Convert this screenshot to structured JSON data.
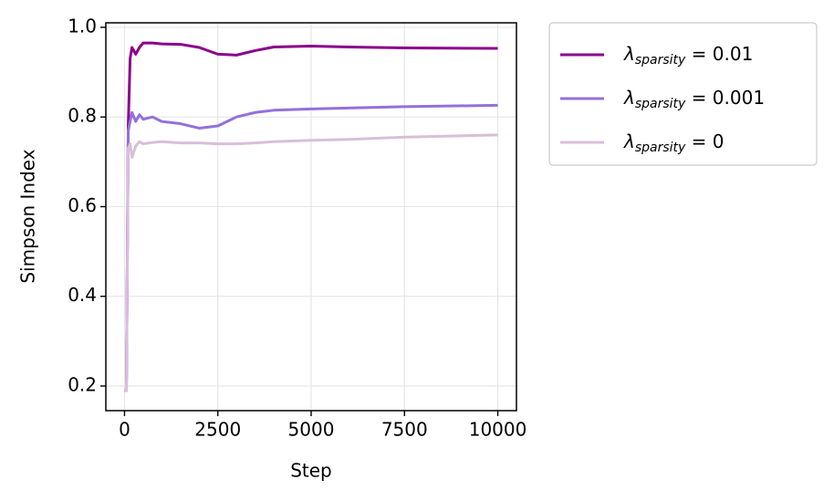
{
  "chart_data": {
    "type": "line",
    "xlabel": "Step",
    "ylabel": "Simpson Index",
    "x": [
      0,
      50,
      100,
      150,
      200,
      300,
      400,
      500,
      750,
      1000,
      1500,
      2000,
      2500,
      3000,
      3500,
      4000,
      5000,
      6000,
      7500,
      10000
    ],
    "series": [
      {
        "name": "λsparsity = 0.01",
        "color": "#8b008b",
        "values": [
          0.19,
          0.19,
          0.78,
          0.93,
          0.955,
          0.94,
          0.955,
          0.965,
          0.965,
          0.963,
          0.962,
          0.955,
          0.94,
          0.938,
          0.948,
          0.956,
          0.958,
          0.956,
          0.954,
          0.953
        ]
      },
      {
        "name": "λsparsity = 0.001",
        "color": "#9370db",
        "values": [
          0.19,
          0.19,
          0.77,
          0.79,
          0.81,
          0.79,
          0.805,
          0.795,
          0.8,
          0.79,
          0.785,
          0.775,
          0.78,
          0.8,
          0.81,
          0.815,
          0.818,
          0.82,
          0.823,
          0.826
        ]
      },
      {
        "name": "λsparsity = 0",
        "color": "#d8bfd8",
        "values": [
          0.19,
          0.19,
          0.73,
          0.74,
          0.71,
          0.735,
          0.745,
          0.74,
          0.743,
          0.745,
          0.742,
          0.742,
          0.74,
          0.74,
          0.742,
          0.745,
          0.748,
          0.75,
          0.755,
          0.76
        ]
      }
    ],
    "xlim": [
      -500,
      10500
    ],
    "xticks": [
      0,
      2500,
      5000,
      7500,
      10000
    ],
    "ylim": [
      0.145,
      1.01
    ],
    "yticks": [
      0.2,
      0.4,
      0.6,
      0.8,
      {
        "value": 1,
        "label": "1.0"
      }
    ],
    "grid": true,
    "legend": "outside upper right"
  }
}
